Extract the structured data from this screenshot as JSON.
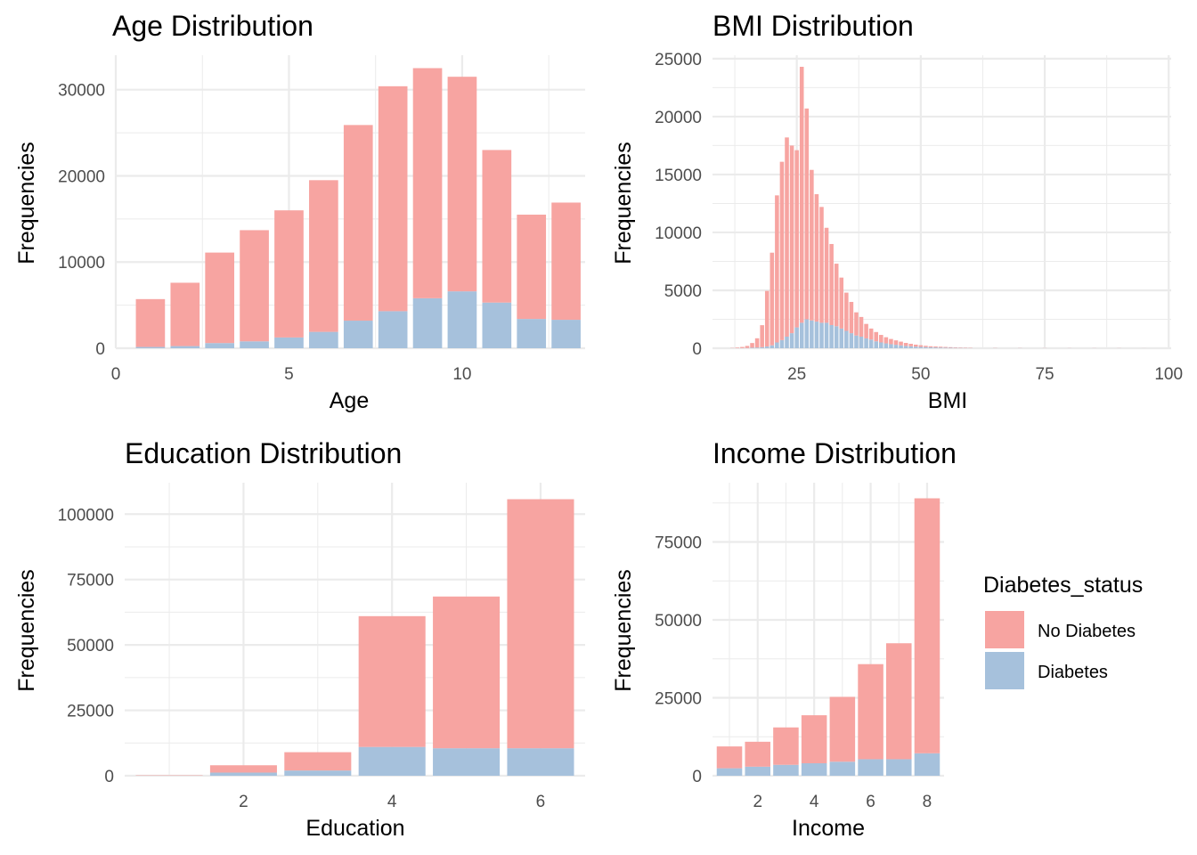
{
  "chart_data": [
    {
      "type": "bar",
      "stacked": true,
      "title": "Age Distribution",
      "xlabel": "Age",
      "ylabel": "Frequencies",
      "xlim": [
        0,
        13.55
      ],
      "ylim": [
        0,
        34000
      ],
      "xticks": [
        0,
        5,
        10
      ],
      "yticks": [
        0,
        10000,
        20000,
        30000
      ],
      "grid": true,
      "categories": [
        1,
        2,
        3,
        4,
        5,
        6,
        7,
        8,
        9,
        10,
        11,
        12,
        13
      ],
      "series": [
        {
          "name": "Diabetes",
          "color": "#a6c1dc",
          "values": [
            150,
            250,
            600,
            800,
            1250,
            1900,
            3200,
            4300,
            5800,
            6600,
            5300,
            3400,
            3300
          ]
        },
        {
          "name": "No Diabetes",
          "color": "#f7a4a1",
          "values": [
            5550,
            7350,
            10500,
            12900,
            14750,
            17600,
            22700,
            26100,
            26700,
            24900,
            17700,
            12100,
            13600
          ]
        }
      ]
    },
    {
      "type": "bar",
      "stacked": true,
      "title": "BMI Distribution",
      "xlabel": "BMI",
      "ylabel": "Frequencies",
      "xlim": [
        8,
        100.5
      ],
      "ylim": [
        0,
        25300
      ],
      "xticks": [
        25,
        50,
        75,
        100
      ],
      "yticks": [
        0,
        5000,
        10000,
        15000,
        20000,
        25000
      ],
      "grid": true,
      "categories": [
        12,
        13,
        14,
        15,
        16,
        17,
        18,
        19,
        20,
        21,
        22,
        23,
        24,
        25,
        26,
        27,
        28,
        29,
        30,
        31,
        32,
        33,
        34,
        35,
        36,
        37,
        38,
        39,
        40,
        41,
        42,
        43,
        44,
        45,
        46,
        47,
        48,
        49,
        50,
        51,
        52,
        53,
        54,
        55,
        56,
        57,
        58,
        59,
        60,
        65,
        70,
        75,
        80,
        85,
        90,
        95
      ],
      "series": [
        {
          "name": "Diabetes",
          "color": "#a6c1dc",
          "values": [
            0,
            0,
            10,
            20,
            50,
            60,
            90,
            150,
            250,
            500,
            700,
            1000,
            1300,
            1800,
            2200,
            2500,
            2400,
            2300,
            2200,
            2200,
            2000,
            1900,
            1700,
            1500,
            1300,
            1100,
            1000,
            850,
            750,
            600,
            500,
            420,
            350,
            300,
            250,
            200,
            170,
            140,
            120,
            100,
            80,
            70,
            60,
            50,
            40,
            30,
            25,
            20,
            15,
            10,
            8,
            5,
            5,
            5,
            5,
            3
          ]
        },
        {
          "name": "No Diabetes",
          "color": "#f7a4a1",
          "values": [
            20,
            50,
            100,
            180,
            400,
            800,
            1900,
            4800,
            8000,
            12700,
            15400,
            17200,
            16200,
            15300,
            22100,
            18200,
            13000,
            11000,
            10000,
            8200,
            7000,
            5400,
            4400,
            3300,
            2700,
            2000,
            1700,
            1250,
            950,
            800,
            650,
            530,
            450,
            380,
            320,
            260,
            210,
            170,
            140,
            110,
            90,
            80,
            70,
            60,
            50,
            40,
            35,
            30,
            25,
            15,
            12,
            10,
            8,
            8,
            8,
            5
          ]
        }
      ]
    },
    {
      "type": "bar",
      "stacked": true,
      "title": "Education Distribution",
      "xlabel": "Education",
      "ylabel": "Frequencies",
      "xlim": [
        0.4,
        6.6
      ],
      "ylim": [
        0,
        112000
      ],
      "xticks": [
        2,
        4,
        6
      ],
      "yticks": [
        0,
        25000,
        50000,
        75000,
        100000
      ],
      "grid": true,
      "categories": [
        1,
        2,
        3,
        4,
        5,
        6
      ],
      "series": [
        {
          "name": "Diabetes",
          "color": "#a6c1dc",
          "values": [
            50,
            1200,
            2000,
            11000,
            10500,
            10500
          ]
        },
        {
          "name": "No Diabetes",
          "color": "#f7a4a1",
          "values": [
            150,
            2800,
            7000,
            50000,
            58000,
            95200
          ]
        }
      ]
    },
    {
      "type": "bar",
      "stacked": true,
      "title": "Income Distribution",
      "xlabel": "Income",
      "ylabel": "Frequencies",
      "xlim": [
        0.4,
        8.6
      ],
      "ylim": [
        0,
        94000
      ],
      "xticks": [
        2,
        4,
        6,
        8
      ],
      "yticks": [
        0,
        25000,
        50000,
        75000
      ],
      "grid": true,
      "categories": [
        1,
        2,
        3,
        4,
        5,
        6,
        7,
        8
      ],
      "series": [
        {
          "name": "Diabetes",
          "color": "#a6c1dc",
          "values": [
            2400,
            2900,
            3500,
            4000,
            4500,
            5300,
            5300,
            7200
          ]
        },
        {
          "name": "No Diabetes",
          "color": "#f7a4a1",
          "values": [
            7000,
            8000,
            12000,
            15400,
            20800,
            30500,
            37200,
            81800
          ]
        }
      ]
    }
  ],
  "legend": {
    "title": "Diabetes_status",
    "items": [
      {
        "label": "No Diabetes",
        "color": "#f7a4a1"
      },
      {
        "label": "Diabetes",
        "color": "#a6c1dc"
      }
    ]
  }
}
